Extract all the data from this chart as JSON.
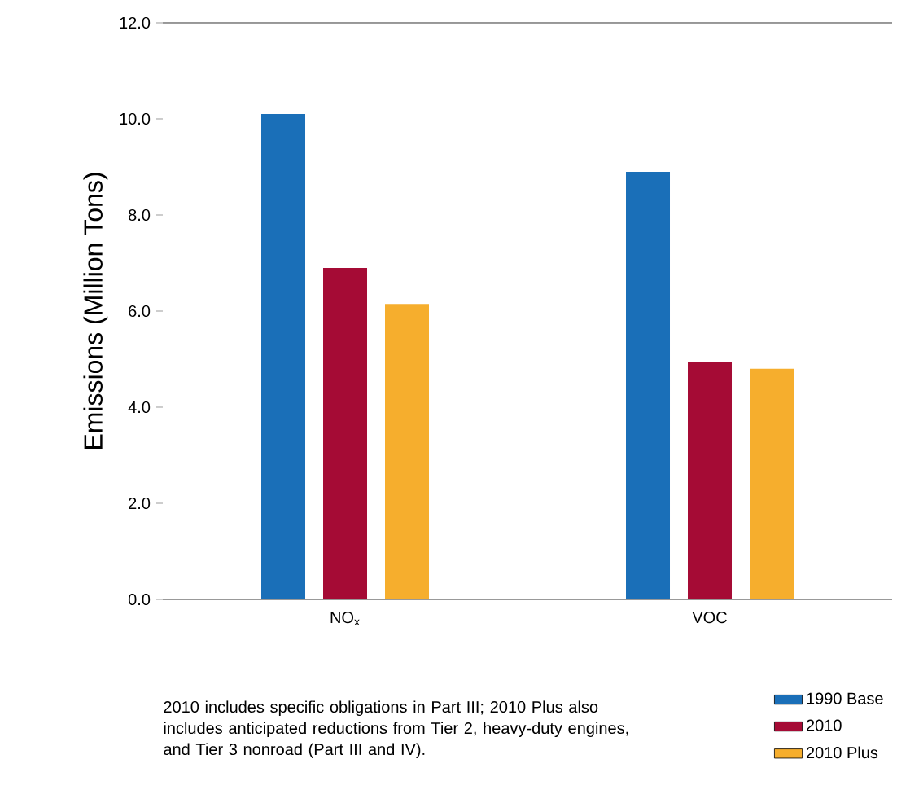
{
  "chart_data": {
    "type": "bar",
    "categories": [
      "NO$_{x}$",
      "VOC"
    ],
    "ylabel": "Emissions (Million Tons)",
    "ylim": [
      0,
      12
    ],
    "yticks": [
      {
        "value": 0,
        "label": "0.0"
      },
      {
        "value": 2,
        "label": "2.0"
      },
      {
        "value": 4,
        "label": "4.0"
      },
      {
        "value": 6,
        "label": "6.0"
      },
      {
        "value": 8,
        "label": "8.0"
      },
      {
        "value": 10,
        "label": "10.0"
      },
      {
        "value": 12,
        "label": "12.0"
      }
    ],
    "series": [
      {
        "name": "1990 Base",
        "color": "#1a6fb8",
        "values": [
          10.1,
          8.9
        ]
      },
      {
        "name": "2010",
        "color": "#a50b35",
        "values": [
          6.9,
          4.95
        ]
      },
      {
        "name": "2010 Plus",
        "color": "#f6ae2d",
        "values": [
          6.15,
          4.8
        ]
      }
    ],
    "legend": "bottom right",
    "grid": false,
    "annotations": [
      "2010 includes specific obligations in Part III; 2010 Plus also includes anticipated reductions from Tier 2, heavy-duty engines, and Tier 3 nonroad (Part III and IV)."
    ]
  }
}
